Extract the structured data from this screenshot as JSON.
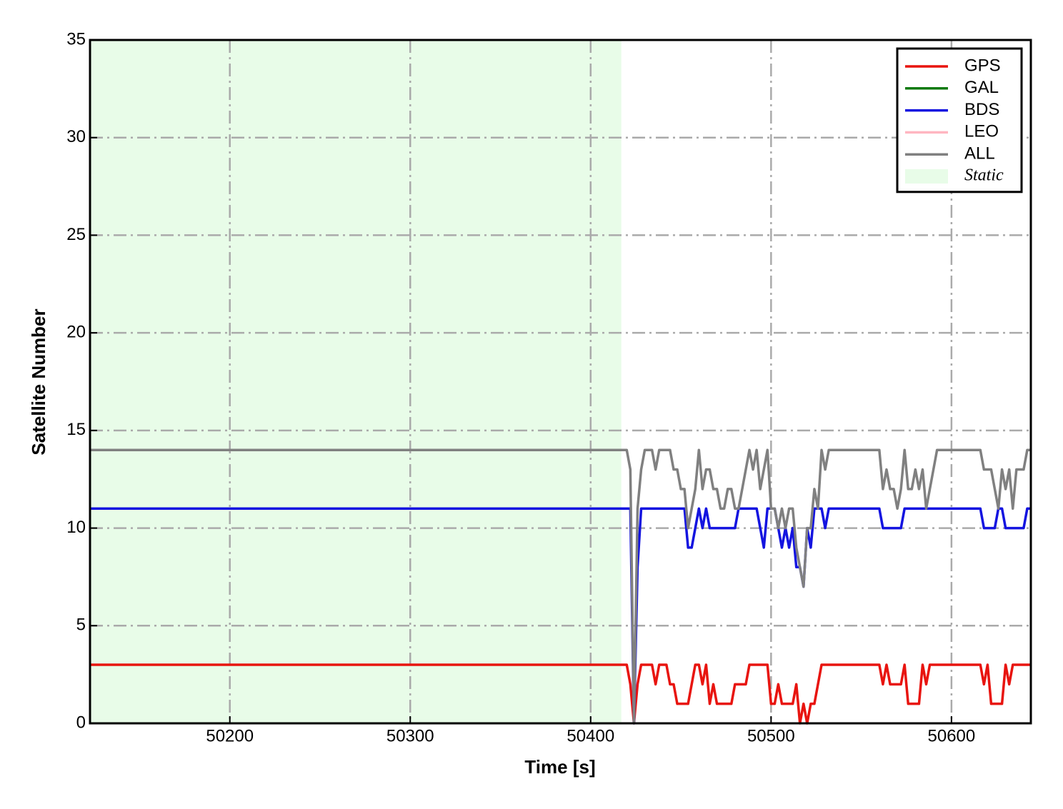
{
  "chart_data": {
    "type": "line",
    "xlabel": "Time [s]",
    "ylabel": "Satellite Number",
    "xlim": [
      50122.5,
      50644
    ],
    "ylim": [
      0,
      35
    ],
    "xticks": [
      50200,
      50300,
      50400,
      50500,
      50600
    ],
    "yticks": [
      0,
      5,
      10,
      15,
      20,
      25,
      30,
      35
    ],
    "grid": true,
    "legend": "upper right",
    "shaded": {
      "name": "Static",
      "color": "#e8fce8",
      "x": [
        50122.5,
        50417
      ]
    },
    "x": [
      50123,
      50420,
      50422,
      50424,
      50426,
      50428,
      50430,
      50432,
      50434,
      50436,
      50438,
      50440,
      50442,
      50444,
      50446,
      50448,
      50450,
      50452,
      50454,
      50456,
      50458,
      50460,
      50462,
      50464,
      50466,
      50468,
      50470,
      50472,
      50474,
      50476,
      50478,
      50480,
      50482,
      50484,
      50486,
      50488,
      50490,
      50492,
      50494,
      50496,
      50498,
      50500,
      50502,
      50504,
      50506,
      50508,
      50510,
      50512,
      50514,
      50516,
      50518,
      50520,
      50522,
      50524,
      50526,
      50528,
      50530,
      50532,
      50534,
      50536,
      50538,
      50540,
      50542,
      50544,
      50546,
      50548,
      50550,
      50552,
      50554,
      50556,
      50558,
      50560,
      50562,
      50564,
      50566,
      50568,
      50570,
      50572,
      50574,
      50576,
      50578,
      50580,
      50582,
      50584,
      50586,
      50588,
      50590,
      50592,
      50594,
      50596,
      50598,
      50600,
      50602,
      50604,
      50606,
      50608,
      50610,
      50612,
      50614,
      50616,
      50618,
      50620,
      50622,
      50624,
      50626,
      50628,
      50630,
      50632,
      50634,
      50636,
      50638,
      50640,
      50642,
      50644
    ],
    "series": [
      {
        "name": "GPS",
        "color": "#e8140f",
        "values": [
          3,
          3,
          2,
          0,
          2,
          3,
          3,
          3,
          3,
          2,
          3,
          3,
          3,
          2,
          2,
          1,
          1,
          1,
          1,
          2,
          3,
          3,
          2,
          3,
          1,
          2,
          1,
          1,
          1,
          1,
          1,
          2,
          2,
          2,
          2,
          3,
          3,
          3,
          3,
          3,
          3,
          1,
          1,
          2,
          1,
          1,
          1,
          1,
          2,
          0,
          1,
          0,
          1,
          1,
          2,
          3,
          3,
          3,
          3,
          3,
          3,
          3,
          3,
          3,
          3,
          3,
          3,
          3,
          3,
          3,
          3,
          3,
          2,
          3,
          2,
          2,
          2,
          2,
          3,
          1,
          1,
          1,
          1,
          3,
          2,
          3,
          3,
          3,
          3,
          3,
          3,
          3,
          3,
          3,
          3,
          3,
          3,
          3,
          3,
          3,
          2,
          3,
          1,
          1,
          1,
          1,
          3,
          2,
          3,
          3,
          3,
          3,
          3,
          3
        ]
      },
      {
        "name": "GAL",
        "color": "#127a12",
        "values": [
          null,
          null,
          null,
          null,
          null,
          null,
          null,
          null,
          null,
          null,
          null,
          null,
          null,
          null,
          null,
          null,
          null,
          null,
          null,
          null,
          null,
          null,
          null,
          null,
          null,
          null,
          null,
          null,
          null,
          null,
          null,
          null,
          null,
          null,
          null,
          null,
          null,
          null,
          null,
          null,
          null,
          null,
          null,
          null,
          null,
          null,
          null,
          null,
          null,
          null,
          null,
          null,
          null,
          null,
          null,
          null,
          null,
          null,
          null,
          null,
          null,
          null,
          null,
          null,
          null,
          null,
          null,
          null,
          null,
          null,
          null,
          null,
          null,
          null,
          null,
          null,
          null,
          null,
          null,
          null,
          null,
          null,
          null,
          null,
          null,
          null,
          null,
          null,
          null,
          null,
          null,
          null,
          null,
          null,
          null,
          null,
          null,
          null,
          null,
          null,
          null,
          null,
          null,
          null,
          null,
          null,
          null,
          null,
          null,
          null,
          null,
          null,
          null,
          null
        ]
      },
      {
        "name": "BDS",
        "color": "#1414e0",
        "values": [
          11,
          11,
          11,
          0,
          8,
          11,
          11,
          11,
          11,
          11,
          11,
          11,
          11,
          11,
          11,
          11,
          11,
          11,
          9,
          9,
          10,
          11,
          10,
          11,
          10,
          10,
          10,
          10,
          10,
          10,
          10,
          10,
          11,
          11,
          11,
          11,
          11,
          11,
          10,
          9,
          11,
          11,
          11,
          10,
          9,
          10,
          9,
          10,
          8,
          8,
          7,
          10,
          9,
          11,
          11,
          11,
          10,
          11,
          11,
          11,
          11,
          11,
          11,
          11,
          11,
          11,
          11,
          11,
          11,
          11,
          11,
          11,
          10,
          10,
          10,
          10,
          10,
          10,
          11,
          11,
          11,
          11,
          11,
          11,
          11,
          11,
          11,
          11,
          11,
          11,
          11,
          11,
          11,
          11,
          11,
          11,
          11,
          11,
          11,
          11,
          10,
          10,
          10,
          10,
          11,
          11,
          10,
          10,
          10,
          10,
          10,
          10,
          11,
          11
        ]
      },
      {
        "name": "LEO",
        "color": "#ffb6c1",
        "values": [
          null,
          null,
          null,
          null,
          null,
          null,
          null,
          null,
          null,
          null,
          null,
          null,
          null,
          null,
          null,
          null,
          null,
          null,
          null,
          null,
          null,
          null,
          null,
          null,
          null,
          null,
          null,
          null,
          null,
          null,
          null,
          null,
          null,
          null,
          null,
          null,
          null,
          null,
          null,
          null,
          null,
          null,
          null,
          null,
          null,
          null,
          null,
          null,
          null,
          null,
          null,
          null,
          null,
          null,
          null,
          null,
          null,
          null,
          null,
          null,
          null,
          null,
          null,
          null,
          null,
          null,
          null,
          null,
          null,
          null,
          null,
          null,
          null,
          null,
          null,
          null,
          null,
          null,
          null,
          null,
          null,
          null,
          null,
          null,
          null,
          null,
          null,
          null,
          null,
          null,
          null,
          null,
          null,
          null,
          null,
          null,
          null,
          null,
          null,
          null,
          null,
          null,
          null,
          null,
          null,
          null,
          null,
          null,
          null,
          null,
          null,
          null,
          null,
          null
        ]
      },
      {
        "name": "ALL",
        "color": "#808080",
        "values": [
          14,
          14,
          13,
          0,
          11,
          13,
          14,
          14,
          14,
          13,
          14,
          14,
          14,
          14,
          13,
          13,
          12,
          12,
          10,
          11,
          12,
          14,
          12,
          13,
          13,
          12,
          12,
          11,
          11,
          12,
          12,
          11,
          11,
          12,
          13,
          14,
          13,
          14,
          12,
          13,
          14,
          11,
          11,
          10,
          11,
          10,
          11,
          11,
          9,
          8,
          7,
          10,
          10,
          12,
          11,
          14,
          13,
          14,
          14,
          14,
          14,
          14,
          14,
          14,
          14,
          14,
          14,
          14,
          14,
          14,
          14,
          14,
          12,
          13,
          12,
          12,
          11,
          12,
          14,
          12,
          12,
          13,
          12,
          13,
          11,
          12,
          13,
          14,
          14,
          14,
          14,
          14,
          14,
          14,
          14,
          14,
          14,
          14,
          14,
          14,
          13,
          13,
          13,
          12,
          11,
          13,
          12,
          13,
          11,
          13,
          13,
          13,
          14,
          14
        ]
      }
    ]
  }
}
